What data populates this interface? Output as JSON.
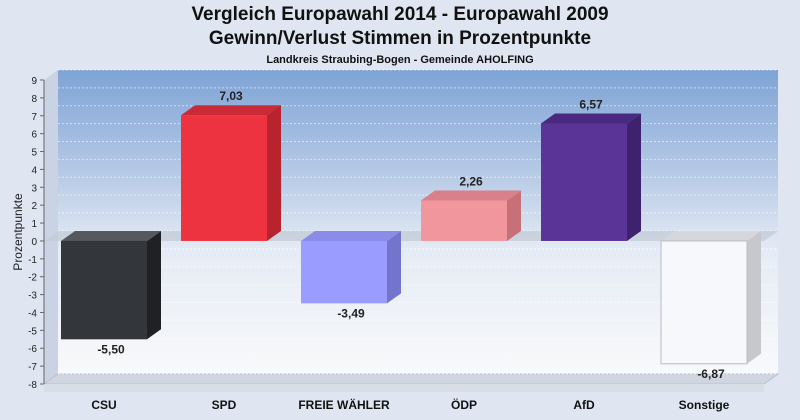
{
  "chart_data": {
    "type": "bar",
    "title": "Vergleich Europawahl 2014 - Europawahl 2009",
    "subtitle": "Gewinn/Verlust Stimmen in Prozentpunkte",
    "caption": "Landkreis Straubing-Bogen - Gemeinde AHOLFING",
    "xlabel": "",
    "ylabel": "Prozentpunkte",
    "ylim": [
      -8,
      9
    ],
    "yticks": [
      9,
      8,
      7,
      6,
      5,
      4,
      3,
      2,
      1,
      0,
      -1,
      -2,
      -3,
      -4,
      -5,
      -6,
      -7,
      -8
    ],
    "grid": true,
    "categories": [
      "CSU",
      "SPD",
      "FREIE WÄHLER",
      "ÖDP",
      "AfD",
      "Sonstige"
    ],
    "values": [
      -5.5,
      7.03,
      -3.49,
      2.26,
      6.57,
      -6.87
    ],
    "value_labels": [
      "-5,50",
      "7,03",
      "-3,49",
      "2,26",
      "6,57",
      "-6,87"
    ],
    "colors": [
      "#33363a",
      "#ee3340",
      "#9a9cff",
      "#f0969c",
      "#5b3497",
      "#f6f8fc"
    ],
    "side_colors": [
      "#1f2124",
      "#b8232e",
      "#7375cc",
      "#c77078",
      "#3e2270",
      "#c6c8cc"
    ],
    "top_colors": [
      "#55585c",
      "#c92a36",
      "#8a8ce8",
      "#d9808a",
      "#4a2a80",
      "#d5d7dc"
    ]
  }
}
